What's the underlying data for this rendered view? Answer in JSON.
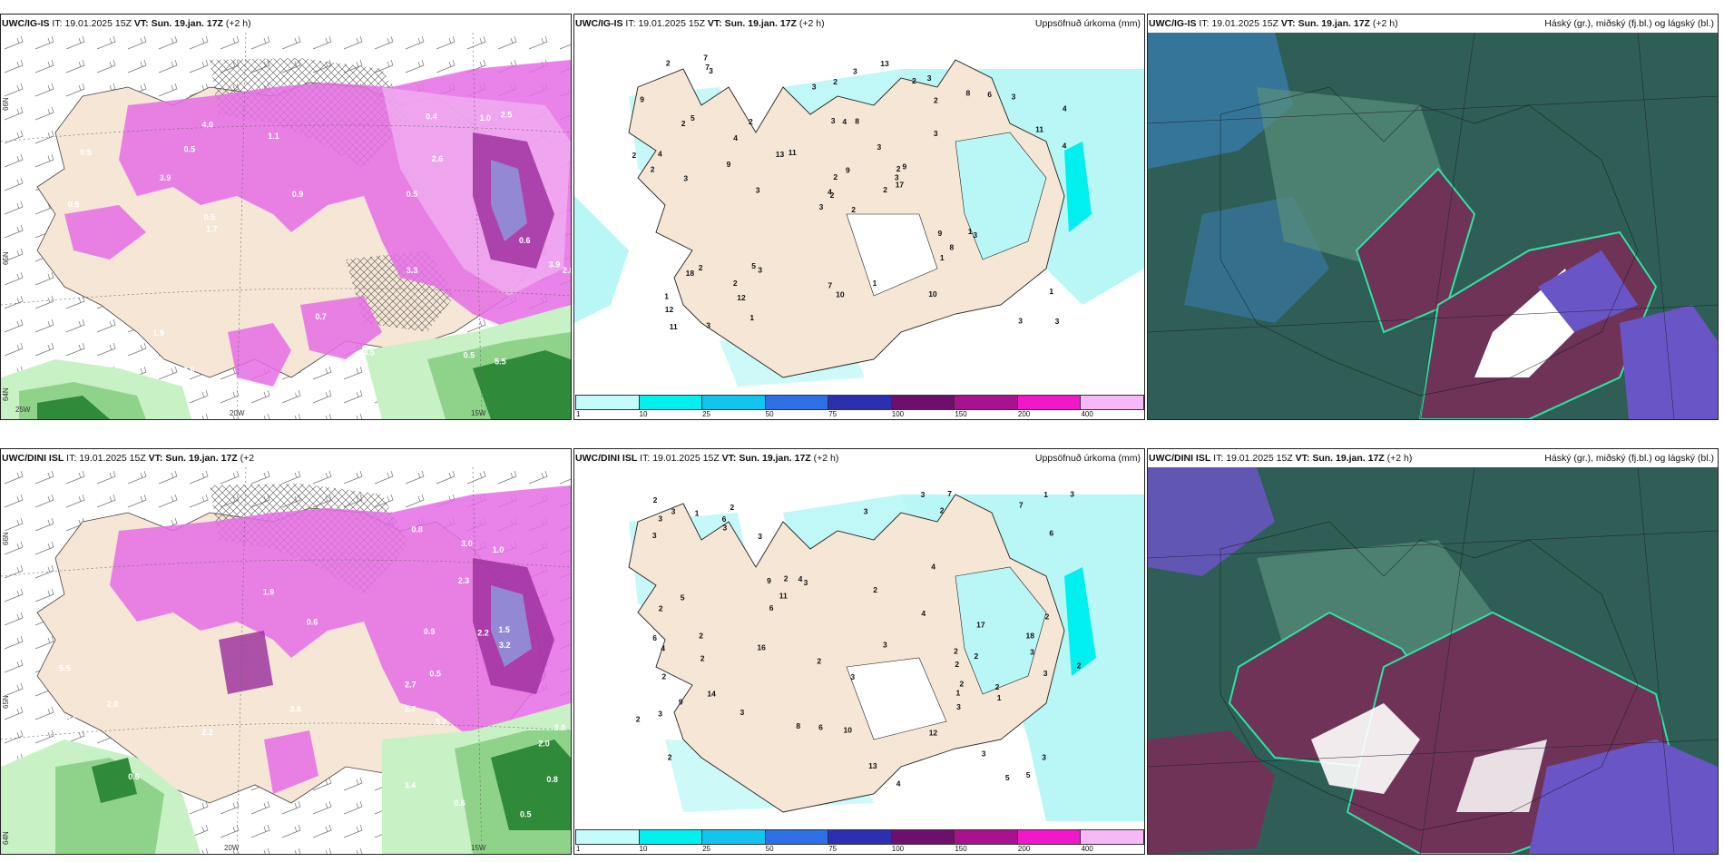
{
  "colors": {
    "land": "#f5e6d6",
    "rain_light": "#c8f1c6",
    "rain_mid": "#8fd38a",
    "rain_dark": "#2f8a3a",
    "snow_light": "#f2b3f2",
    "snow_mid": "#e56de5",
    "snow_dark": "#9b2a9b",
    "precip_cyan": "#b9f6f6",
    "cloud_base": "#2e5e55",
    "cloud_blue": "#3a7fb8",
    "cloud_mid": "#6f3358",
    "cloud_low": "#6a55c6"
  },
  "panels": [
    {
      "model": "UWC/IG-IS",
      "it_label": "IT:",
      "it_value": "19.01.2025 15Z",
      "vt_label": "VT:",
      "vt_value": "Sun. 19.jan. 17Z",
      "offset": "(+2 h)",
      "right_label": ""
    },
    {
      "model": "UWC/IG-IS",
      "it_label": "IT:",
      "it_value": "19.01.2025 15Z",
      "vt_label": "VT:",
      "vt_value": "Sun. 19.jan. 17Z",
      "offset": "(+2 h)",
      "right_label": "Uppsöfnuð úrkoma (mm)"
    },
    {
      "model": "UWC/IG-IS",
      "it_label": "IT:",
      "it_value": "19.01.2025 15Z",
      "vt_label": "VT:",
      "vt_value": "Sun. 19.jan. 17Z",
      "offset": "(+2 h)",
      "right_label": "Háský (gr.), miðský (fj.bl.) og lágský (bl.)"
    },
    {
      "model": "UWC/DINI ISL",
      "it_label": "IT:",
      "it_value": "19.01.2025 15Z",
      "vt_label": "VT:",
      "vt_value": "Sun. 19.jan. 17Z",
      "offset": "(+2",
      "right_label": ""
    },
    {
      "model": "UWC/DINI ISL",
      "it_label": "IT:",
      "it_value": "19.01.2025 15Z",
      "vt_label": "VT:",
      "vt_value": "Sun. 19.jan. 17Z",
      "offset": "(+2 h)",
      "right_label": "Uppsöfnuð úrkoma (mm)"
    },
    {
      "model": "UWC/DINI ISL",
      "it_label": "IT:",
      "it_value": "19.01.2025 15Z",
      "vt_label": "VT:",
      "vt_value": "Sun. 19.jan. 17Z",
      "offset": "(+2 h)",
      "right_label": "Háský (gr.), miðský (fj.bl.) og lágský (bl.)"
    }
  ],
  "legend": {
    "labels": [
      "1",
      "10",
      "25",
      "50",
      "75",
      "100",
      "150",
      "200",
      "400"
    ],
    "colors": [
      "#c4fbfb",
      "#00f0f0",
      "#12c5ef",
      "#2f6fe6",
      "#2b2fb0",
      "#6e0f6e",
      "#a8128e",
      "#f018c8",
      "#f6b8f6"
    ]
  },
  "axes": {
    "panel1": {
      "lat": [
        "66N",
        "65N",
        "64N"
      ],
      "lon": [
        "25W",
        "20W",
        "15W"
      ]
    },
    "panel4": {
      "lat": [
        "66N",
        "65N",
        "64N"
      ],
      "lon": [
        "20W",
        "15W"
      ]
    }
  },
  "precip_top": [
    "2",
    "2",
    "2",
    "1",
    "2",
    "3",
    "3",
    "8",
    "2",
    "2",
    "3",
    "3",
    "3",
    "4",
    "3",
    "3",
    "3",
    "3",
    "3",
    "2",
    "11",
    "12",
    "12",
    "4",
    "9",
    "3",
    "5",
    "2",
    "2",
    "9",
    "4",
    "4",
    "7",
    "2",
    "2",
    "8",
    "5",
    "3",
    "1",
    "1",
    "13",
    "13",
    "9",
    "1",
    "1",
    "2",
    "3",
    "11",
    "10",
    "17",
    "18",
    "11",
    "9",
    "8",
    "10",
    "2",
    "7",
    "2",
    "1",
    "3",
    "3",
    "3",
    "4",
    "4",
    "6",
    "7",
    "2",
    "3",
    "9"
  ],
  "precip_bottom": [
    "2",
    "3",
    "2",
    "2",
    "3",
    "3",
    "3",
    "2",
    "9",
    "4",
    "3",
    "6",
    "3",
    "3",
    "8",
    "2",
    "3",
    "3",
    "4",
    "14",
    "3",
    "7",
    "6",
    "3",
    "3",
    "6",
    "2",
    "4",
    "3",
    "17",
    "13",
    "12",
    "11",
    "16",
    "18",
    "1",
    "1",
    "2",
    "10",
    "9",
    "6",
    "7",
    "5",
    "6",
    "2",
    "3",
    "2",
    "3",
    "4",
    "2",
    "2",
    "2",
    "1",
    "2",
    "3",
    "5",
    "4",
    "2",
    "2",
    "1",
    "2",
    "3",
    "2",
    "2",
    "3",
    "5",
    "2"
  ],
  "wx_top": [
    "0.5",
    "0.5",
    "0.5",
    "1.1",
    "1.0",
    "2.4",
    "3.3",
    "1.7",
    "2.5",
    "2.8",
    "3.9",
    "4.0",
    "2.6",
    "1.9",
    "0.5",
    "0.9",
    "0.5",
    "1.1",
    "5.5",
    "4.5",
    "0.5",
    "0.6",
    "0.9",
    "0.7",
    "0.4",
    "3.9"
  ],
  "wx_bottom": [
    "2.7",
    "3.0",
    "2.2",
    "2.0",
    "3.4",
    "2.3",
    "1.5",
    "0.6",
    "0.8",
    "0.6",
    "0.5",
    "2.7",
    "0.5",
    "3.2",
    "2.2",
    "0.5",
    "1.0",
    "2.0",
    "3.0",
    "1.9",
    "3.8",
    "5.5",
    "0.9",
    "0.8",
    "3.2",
    "0.6"
  ]
}
